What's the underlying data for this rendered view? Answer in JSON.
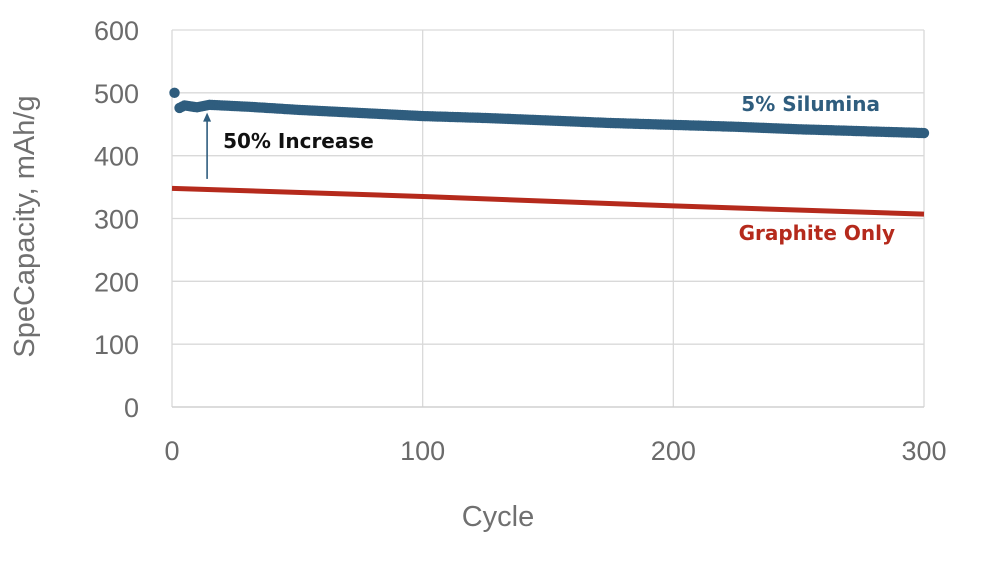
{
  "chart_data": {
    "type": "line",
    "xlabel": "Cycle",
    "ylabel": "SpeCapacity, mAh/g",
    "xlim": [
      0,
      300
    ],
    "ylim": [
      0,
      600
    ],
    "x_ticks": [
      0,
      100,
      200,
      300
    ],
    "y_ticks": [
      0,
      100,
      200,
      300,
      400,
      500,
      600
    ],
    "grid": true,
    "series": [
      {
        "name": "5% Silumina",
        "color": "#2f5d7e",
        "marker": "circle",
        "first_point": {
          "x": 1,
          "y": 500
        },
        "x": [
          3,
          5,
          10,
          15,
          20,
          30,
          50,
          75,
          100,
          125,
          150,
          175,
          200,
          225,
          250,
          275,
          300
        ],
        "y": [
          476,
          480,
          477,
          481,
          480,
          478,
          473,
          468,
          463,
          460,
          456,
          452,
          449,
          446,
          442,
          439,
          436
        ]
      },
      {
        "name": "Graphite Only",
        "color": "#b52a1c",
        "marker": "none",
        "x": [
          0,
          100,
          200,
          300
        ],
        "y": [
          348,
          335,
          320,
          307
        ]
      }
    ],
    "annotations": [
      {
        "text": "50% Increase",
        "arrow_x": 14,
        "arrow_from_y": 363,
        "arrow_to_y": 478
      }
    ]
  }
}
